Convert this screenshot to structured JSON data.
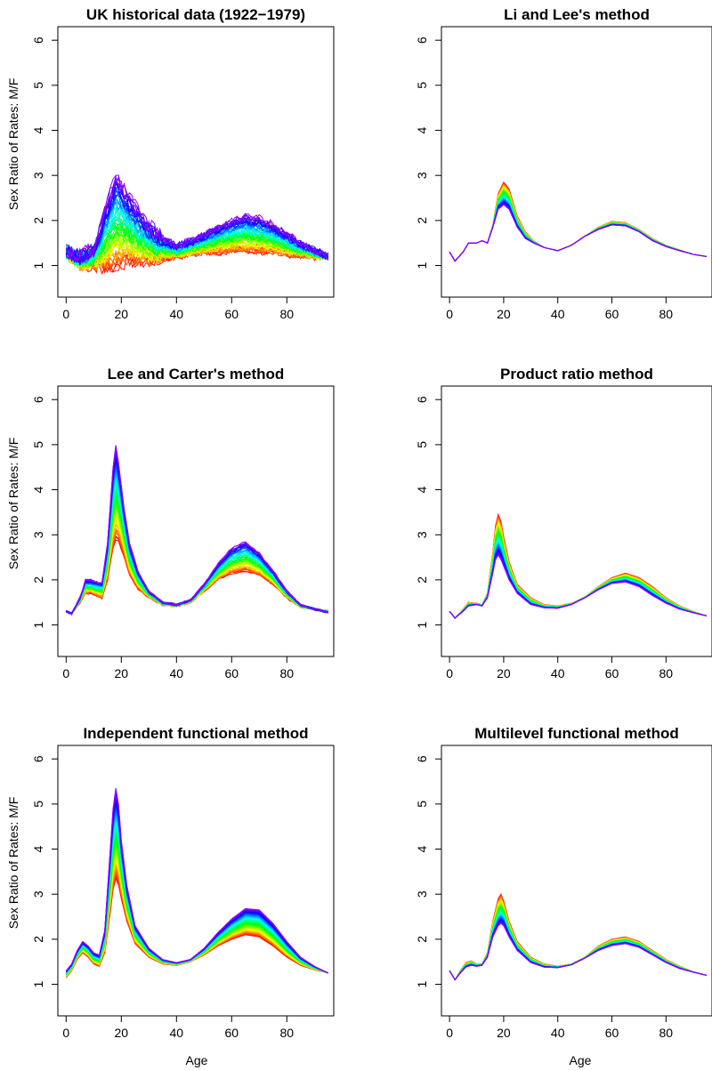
{
  "figure": {
    "x_label": "Age",
    "y_label": "Sex Ratio of Rates: M/F"
  },
  "chart_data": [
    {
      "type": "line",
      "title": "UK historical data (1922−1979)",
      "xlabel": "",
      "ylabel": "Sex Ratio of Rates: M/F",
      "xlim": [
        0,
        95
      ],
      "ylim": [
        0.3,
        6.3
      ],
      "x_ticks": [
        "0",
        "20",
        "40",
        "60",
        "80"
      ],
      "y_ticks": [
        "1",
        "2",
        "3",
        "4",
        "5",
        "6"
      ],
      "grid": false,
      "color_scheme": "rainbow, red (earliest) to violet (latest)",
      "n_curves": 58,
      "style": "noisy",
      "x": [
        0,
        5,
        10,
        15,
        18,
        20,
        23,
        26,
        30,
        35,
        40,
        45,
        50,
        55,
        60,
        65,
        70,
        75,
        80,
        85,
        90,
        95
      ],
      "first_curve": [
        1.3,
        1.05,
        1.0,
        0.95,
        1.0,
        1.05,
        1.1,
        1.1,
        1.1,
        1.15,
        1.2,
        1.25,
        1.3,
        1.3,
        1.32,
        1.32,
        1.3,
        1.28,
        1.25,
        1.22,
        1.2,
        1.2
      ],
      "last_curve": [
        1.3,
        1.2,
        1.4,
        2.4,
        3.0,
        2.8,
        2.5,
        2.2,
        1.9,
        1.6,
        1.45,
        1.55,
        1.7,
        1.85,
        2.0,
        2.1,
        2.05,
        1.9,
        1.7,
        1.5,
        1.35,
        1.2
      ]
    },
    {
      "type": "line",
      "title": "Li and Lee's method",
      "xlabel": "",
      "ylabel": "",
      "xlim": [
        0,
        95
      ],
      "ylim": [
        0.3,
        6.3
      ],
      "x_ticks": [
        "0",
        "20",
        "40",
        "60",
        "80"
      ],
      "y_ticks": [
        "1",
        "2",
        "3",
        "4",
        "5",
        "6"
      ],
      "grid": false,
      "color_scheme": "rainbow, red (earliest) to violet (latest)",
      "n_curves": 50,
      "style": "smooth",
      "x": [
        0,
        2,
        5,
        7,
        10,
        12,
        14,
        16,
        18,
        20,
        22,
        25,
        28,
        31,
        35,
        40,
        45,
        50,
        55,
        60,
        65,
        70,
        75,
        80,
        85,
        90,
        95
      ],
      "first_curve": [
        1.3,
        1.1,
        1.3,
        1.5,
        1.5,
        1.55,
        1.5,
        1.9,
        2.6,
        2.85,
        2.7,
        2.1,
        1.75,
        1.55,
        1.4,
        1.33,
        1.45,
        1.65,
        1.85,
        1.98,
        1.95,
        1.8,
        1.6,
        1.45,
        1.35,
        1.25,
        1.2
      ],
      "last_curve": [
        1.3,
        1.1,
        1.3,
        1.5,
        1.5,
        1.55,
        1.5,
        1.85,
        2.25,
        2.35,
        2.25,
        1.85,
        1.6,
        1.5,
        1.4,
        1.33,
        1.45,
        1.65,
        1.8,
        1.9,
        1.88,
        1.75,
        1.55,
        1.42,
        1.33,
        1.25,
        1.2
      ]
    },
    {
      "type": "line",
      "title": "Lee and Carter's method",
      "xlabel": "",
      "ylabel": "Sex Ratio of Rates: M/F",
      "xlim": [
        0,
        95
      ],
      "ylim": [
        0.3,
        6.3
      ],
      "x_ticks": [
        "0",
        "20",
        "40",
        "60",
        "80"
      ],
      "y_ticks": [
        "1",
        "2",
        "3",
        "4",
        "5",
        "6"
      ],
      "grid": false,
      "color_scheme": "rainbow, red (earliest) to violet (latest)",
      "n_curves": 50,
      "style": "slightly-noisy",
      "x": [
        0,
        2,
        5,
        7,
        9,
        11,
        13,
        15,
        17,
        18,
        19,
        21,
        23,
        26,
        30,
        35,
        40,
        45,
        50,
        55,
        60,
        65,
        70,
        75,
        80,
        85,
        90,
        95
      ],
      "first_curve": [
        1.3,
        1.25,
        1.5,
        1.7,
        1.7,
        1.65,
        1.6,
        2.0,
        2.7,
        2.9,
        2.85,
        2.5,
        2.1,
        1.8,
        1.6,
        1.45,
        1.42,
        1.5,
        1.75,
        2.0,
        2.15,
        2.2,
        2.1,
        1.9,
        1.6,
        1.4,
        1.35,
        1.3
      ],
      "last_curve": [
        1.3,
        1.25,
        1.6,
        2.0,
        2.0,
        1.95,
        1.95,
        2.8,
        4.5,
        5.0,
        4.6,
        3.6,
        2.8,
        2.2,
        1.75,
        1.5,
        1.45,
        1.55,
        1.9,
        2.35,
        2.7,
        2.85,
        2.6,
        2.2,
        1.75,
        1.45,
        1.35,
        1.28
      ]
    },
    {
      "type": "line",
      "title": "Product ratio method",
      "xlabel": "",
      "ylabel": "",
      "xlim": [
        0,
        95
      ],
      "ylim": [
        0.3,
        6.3
      ],
      "x_ticks": [
        "0",
        "20",
        "40",
        "60",
        "80"
      ],
      "y_ticks": [
        "1",
        "2",
        "3",
        "4",
        "5",
        "6"
      ],
      "grid": false,
      "color_scheme": "rainbow, red (earliest) to violet (latest)",
      "n_curves": 50,
      "style": "smooth",
      "x": [
        0,
        2,
        5,
        7,
        10,
        12,
        14,
        16,
        17,
        18,
        19,
        20,
        22,
        25,
        30,
        35,
        40,
        45,
        50,
        55,
        60,
        65,
        70,
        75,
        80,
        85,
        90,
        95
      ],
      "first_curve": [
        1.3,
        1.15,
        1.35,
        1.5,
        1.48,
        1.45,
        1.7,
        2.6,
        3.2,
        3.45,
        3.3,
        2.95,
        2.4,
        1.9,
        1.6,
        1.45,
        1.42,
        1.48,
        1.62,
        1.85,
        2.05,
        2.15,
        2.05,
        1.85,
        1.6,
        1.42,
        1.3,
        1.2
      ],
      "last_curve": [
        1.3,
        1.15,
        1.3,
        1.42,
        1.45,
        1.42,
        1.6,
        2.15,
        2.45,
        2.55,
        2.45,
        2.3,
        2.0,
        1.7,
        1.45,
        1.38,
        1.37,
        1.45,
        1.6,
        1.78,
        1.92,
        1.95,
        1.85,
        1.65,
        1.48,
        1.35,
        1.27,
        1.2
      ]
    },
    {
      "type": "line",
      "title": "Independent functional method",
      "xlabel": "",
      "ylabel": "Sex Ratio of Rates: M/F",
      "xlim": [
        0,
        95
      ],
      "ylim": [
        0.3,
        6.3
      ],
      "x_ticks": [
        "0",
        "20",
        "40",
        "60",
        "80"
      ],
      "y_ticks": [
        "1",
        "2",
        "3",
        "4",
        "5",
        "6"
      ],
      "grid": false,
      "color_scheme": "rainbow, red (earliest) to violet (latest)",
      "n_curves": 50,
      "style": "smooth",
      "x": [
        0,
        2,
        4,
        6,
        8,
        10,
        12,
        14,
        16,
        17,
        18,
        19,
        20,
        22,
        25,
        30,
        35,
        40,
        45,
        50,
        55,
        60,
        65,
        70,
        75,
        80,
        85,
        90,
        95
      ],
      "first_curve": [
        1.15,
        1.3,
        1.55,
        1.7,
        1.6,
        1.45,
        1.4,
        1.7,
        2.6,
        3.1,
        3.35,
        3.2,
        2.9,
        2.4,
        1.9,
        1.6,
        1.45,
        1.42,
        1.5,
        1.65,
        1.85,
        2.0,
        2.1,
        2.05,
        1.85,
        1.6,
        1.42,
        1.32,
        1.25
      ],
      "last_curve": [
        1.3,
        1.45,
        1.75,
        1.95,
        1.85,
        1.7,
        1.65,
        2.2,
        4.0,
        4.9,
        5.35,
        5.0,
        4.2,
        3.2,
        2.3,
        1.8,
        1.55,
        1.48,
        1.55,
        1.8,
        2.15,
        2.45,
        2.68,
        2.65,
        2.35,
        1.95,
        1.6,
        1.4,
        1.25
      ]
    },
    {
      "type": "line",
      "title": "Multilevel functional method",
      "xlabel": "",
      "ylabel": "",
      "xlim": [
        0,
        95
      ],
      "ylim": [
        0.3,
        6.3
      ],
      "x_ticks": [
        "0",
        "20",
        "40",
        "60",
        "80"
      ],
      "y_ticks": [
        "1",
        "2",
        "3",
        "4",
        "5",
        "6"
      ],
      "grid": false,
      "color_scheme": "rainbow, red (earliest) to violet (latest)",
      "n_curves": 50,
      "style": "smooth",
      "x": [
        0,
        2,
        4,
        6,
        8,
        10,
        12,
        14,
        16,
        18,
        19,
        20,
        22,
        25,
        30,
        35,
        40,
        45,
        50,
        55,
        60,
        65,
        70,
        75,
        80,
        85,
        90,
        95
      ],
      "first_curve": [
        1.3,
        1.1,
        1.3,
        1.48,
        1.52,
        1.45,
        1.45,
        1.7,
        2.4,
        2.9,
        3.0,
        2.85,
        2.4,
        1.95,
        1.6,
        1.45,
        1.4,
        1.45,
        1.6,
        1.85,
        2.0,
        2.05,
        1.95,
        1.75,
        1.55,
        1.4,
        1.28,
        1.2
      ],
      "last_curve": [
        1.3,
        1.1,
        1.25,
        1.38,
        1.42,
        1.4,
        1.42,
        1.6,
        2.05,
        2.3,
        2.35,
        2.3,
        2.05,
        1.75,
        1.48,
        1.38,
        1.37,
        1.43,
        1.58,
        1.75,
        1.86,
        1.9,
        1.82,
        1.65,
        1.48,
        1.35,
        1.27,
        1.2
      ]
    }
  ]
}
